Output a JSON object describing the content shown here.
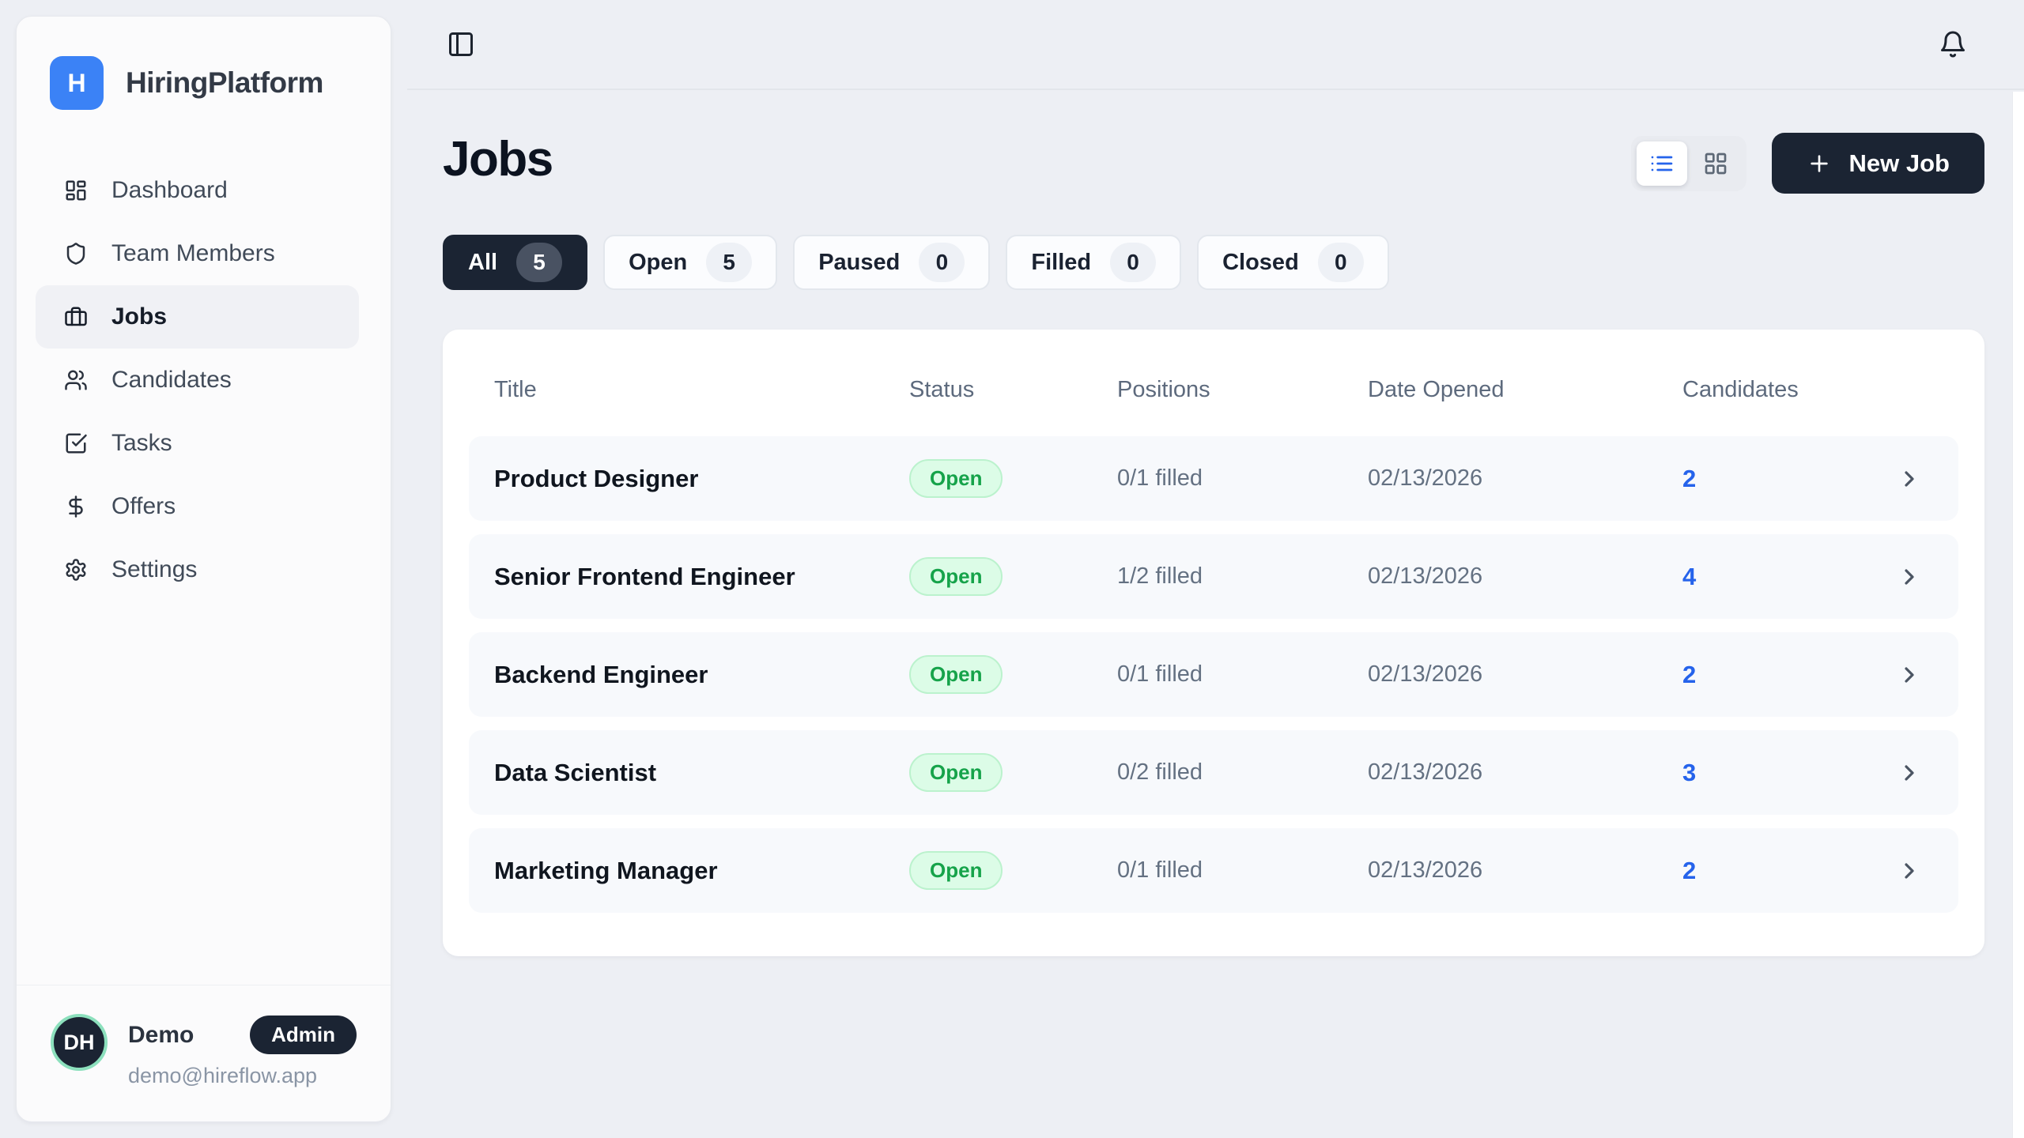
{
  "app": {
    "brand": "HiringPlatform",
    "logo_letter": "H",
    "colors": {
      "accent_blue": "#3b82f6",
      "link_blue": "#2563eb",
      "dark_navy": "#1b2433",
      "open_badge_bg": "#dcfce7",
      "open_badge_text": "#16a34a",
      "avatar_ring_green": "#8ce0bd",
      "page_bg": "#edeff4"
    }
  },
  "sidebar": {
    "items": [
      {
        "label": "Dashboard",
        "icon": "dashboard",
        "active": false
      },
      {
        "label": "Team Members",
        "icon": "shield",
        "active": false
      },
      {
        "label": "Jobs",
        "icon": "briefcase",
        "active": true
      },
      {
        "label": "Candidates",
        "icon": "users",
        "active": false
      },
      {
        "label": "Tasks",
        "icon": "tasks",
        "active": false
      },
      {
        "label": "Offers",
        "icon": "dollar",
        "active": false
      },
      {
        "label": "Settings",
        "icon": "gear",
        "active": false
      }
    ],
    "user": {
      "initials": "DH",
      "name": "Demo",
      "role_badge": "Admin",
      "email": "demo@hireflow.app"
    }
  },
  "header": {
    "title": "Jobs",
    "new_job_label": "New Job",
    "view_modes": [
      {
        "name": "list",
        "active": true
      },
      {
        "name": "grid",
        "active": false
      }
    ]
  },
  "filters": [
    {
      "label": "All",
      "count": 5,
      "active": true
    },
    {
      "label": "Open",
      "count": 5,
      "active": false
    },
    {
      "label": "Paused",
      "count": 0,
      "active": false
    },
    {
      "label": "Filled",
      "count": 0,
      "active": false
    },
    {
      "label": "Closed",
      "count": 0,
      "active": false
    }
  ],
  "table": {
    "columns": [
      "Title",
      "Status",
      "Positions",
      "Date Opened",
      "Candidates"
    ],
    "rows": [
      {
        "title": "Product Designer",
        "status": "Open",
        "positions": "0/1 filled",
        "date_opened": "02/13/2026",
        "candidates": 2
      },
      {
        "title": "Senior Frontend Engineer",
        "status": "Open",
        "positions": "1/2 filled",
        "date_opened": "02/13/2026",
        "candidates": 4
      },
      {
        "title": "Backend Engineer",
        "status": "Open",
        "positions": "0/1 filled",
        "date_opened": "02/13/2026",
        "candidates": 2
      },
      {
        "title": "Data Scientist",
        "status": "Open",
        "positions": "0/2 filled",
        "date_opened": "02/13/2026",
        "candidates": 3
      },
      {
        "title": "Marketing Manager",
        "status": "Open",
        "positions": "0/1 filled",
        "date_opened": "02/13/2026",
        "candidates": 2
      }
    ]
  }
}
